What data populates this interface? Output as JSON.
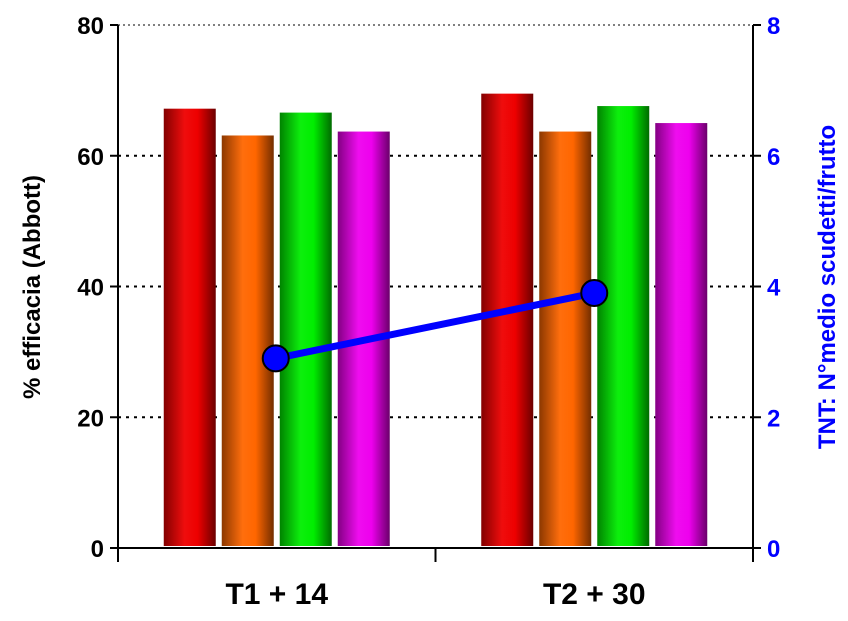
{
  "chart_data": {
    "type": "bar",
    "categories": [
      "T1 + 14",
      "T2 + 30"
    ],
    "series": [
      {
        "values": [
          67.2,
          69.5
        ],
        "color": "#ee0000"
      },
      {
        "values": [
          63.1,
          63.7
        ],
        "color": "#ff6600"
      },
      {
        "values": [
          66.6,
          67.6
        ],
        "color": "#00ee00"
      },
      {
        "values": [
          63.7,
          65.0
        ],
        "color": "#ee00ee"
      }
    ],
    "line_series": {
      "axis": "right",
      "values": [
        2.9,
        3.9
      ],
      "color": "#0000ff"
    },
    "ylabel": "% efficacia (Abbott)",
    "y2label": "TNT: N°medio scudetti/frutto",
    "ylim": [
      0,
      80
    ],
    "y2lim": [
      0,
      8
    ],
    "yticks": [
      "0",
      "20",
      "40",
      "60",
      "80"
    ],
    "y2ticks": [
      "0",
      "2",
      "4",
      "6",
      "8"
    ],
    "grid": "horizontal-dotted",
    "legend": "none"
  }
}
